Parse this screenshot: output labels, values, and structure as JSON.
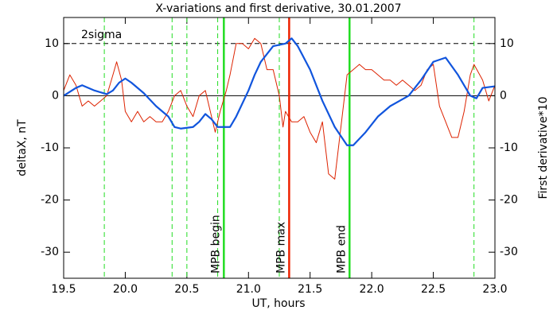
{
  "chart_data": {
    "type": "line",
    "title": "X-variations and first derivative, 30.01.2007",
    "xlabel": "UT, hours",
    "xlim": [
      19.5,
      23.0
    ],
    "xticks": [
      19.5,
      {
        "value": 20,
        "label": "20.0"
      },
      20.5,
      {
        "value": 21,
        "label": "21.0"
      },
      21.5,
      {
        "value": 22,
        "label": "22.0"
      },
      22.5,
      {
        "value": 23,
        "label": "23.0"
      }
    ],
    "ylim": [
      -35,
      15
    ],
    "yticks": [
      -30,
      -20,
      -10,
      0,
      10
    ],
    "y2lim": [
      -35,
      15
    ],
    "y2ticks": [
      -30,
      -20,
      -10,
      0,
      10
    ],
    "series": [
      {
        "name": "deltaX, nT",
        "color": "#1155dd",
        "width": 2.2,
        "x": [
          19.5,
          19.6,
          19.65,
          19.75,
          19.85,
          19.9,
          19.95,
          20.0,
          20.05,
          20.15,
          20.25,
          20.35,
          20.4,
          20.45,
          20.55,
          20.6,
          20.65,
          20.7,
          20.75,
          20.85,
          20.9,
          21.0,
          21.05,
          21.1,
          21.15,
          21.2,
          21.3,
          21.35,
          21.4,
          21.5,
          21.6,
          21.7,
          21.8,
          21.85,
          21.95,
          22.05,
          22.15,
          22.3,
          22.4,
          22.5,
          22.6,
          22.7,
          22.8,
          22.85,
          22.9,
          23.0
        ],
        "values": [
          0,
          1.5,
          2,
          1,
          0.3,
          1,
          2.5,
          3.3,
          2.5,
          0.5,
          -2,
          -4,
          -6,
          -6.3,
          -6,
          -5,
          -3.5,
          -4.5,
          -6,
          -6,
          -4,
          1,
          4,
          6.5,
          8,
          9.5,
          10,
          11,
          9.5,
          5,
          -1,
          -6,
          -9.5,
          -9.5,
          -7,
          -4,
          -2,
          0,
          3,
          6.5,
          7.3,
          4,
          0,
          -0.5,
          1.5,
          1.8
        ]
      },
      {
        "name": "First derivative*10",
        "color": "#dd2200",
        "width": 1,
        "axis": "y2",
        "x": [
          19.5,
          19.55,
          19.6,
          19.65,
          19.7,
          19.75,
          19.8,
          19.85,
          19.9,
          19.93,
          19.97,
          20.0,
          20.05,
          20.1,
          20.15,
          20.2,
          20.25,
          20.3,
          20.35,
          20.4,
          20.45,
          20.5,
          20.55,
          20.6,
          20.65,
          20.7,
          20.73,
          20.77,
          20.82,
          20.85,
          20.9,
          20.95,
          21.0,
          21.05,
          21.1,
          21.15,
          21.2,
          21.25,
          21.28,
          21.3,
          21.35,
          21.4,
          21.45,
          21.5,
          21.55,
          21.6,
          21.65,
          21.7,
          21.75,
          21.8,
          21.85,
          21.9,
          21.95,
          22.0,
          22.05,
          22.1,
          22.15,
          22.2,
          22.25,
          22.3,
          22.35,
          22.4,
          22.45,
          22.5,
          22.55,
          22.6,
          22.65,
          22.7,
          22.75,
          22.8,
          22.83,
          22.9,
          22.95,
          23.0
        ],
        "values": [
          1,
          4,
          2,
          -2,
          -1,
          -2,
          -1,
          0,
          4,
          6.5,
          3,
          -3,
          -5,
          -3,
          -5,
          -4,
          -5,
          -5,
          -3,
          0,
          1,
          -2,
          -4,
          0,
          1,
          -4,
          -7,
          -3,
          1,
          4,
          10,
          10,
          9,
          11,
          10,
          5,
          5,
          0,
          -6,
          -3,
          -5,
          -5,
          -4,
          -7,
          -9,
          -5,
          -15,
          -16,
          -6,
          4,
          5,
          6,
          5,
          5,
          4,
          3,
          3,
          2,
          3,
          2,
          1,
          2,
          5,
          6,
          -2,
          -5,
          -8,
          -8,
          -3,
          4,
          6,
          3,
          -1,
          2
        ]
      }
    ],
    "hlines": [
      {
        "y": 0,
        "color": "#000000",
        "style": "solid"
      },
      {
        "y": 10,
        "color": "#000000",
        "style": "dashed",
        "label": "2sigma"
      }
    ],
    "vlines": [
      {
        "x": 19.83,
        "color": "#22dd22",
        "style": "dashed"
      },
      {
        "x": 20.38,
        "color": "#22dd22",
        "style": "dashed"
      },
      {
        "x": 20.5,
        "color": "#22dd22",
        "style": "dashed"
      },
      {
        "x": 20.75,
        "color": "#22dd22",
        "style": "dashed"
      },
      {
        "x": 20.8,
        "color": "#22dd22",
        "style": "solid",
        "label": "MPB begin"
      },
      {
        "x": 21.25,
        "color": "#22dd22",
        "style": "dashed"
      },
      {
        "x": 21.33,
        "color": "#ee2200",
        "style": "solid",
        "label": "MPB max"
      },
      {
        "x": 21.82,
        "color": "#22dd22",
        "style": "solid",
        "label": "MPB end"
      },
      {
        "x": 22.83,
        "color": "#22dd22",
        "style": "dashed"
      }
    ]
  }
}
